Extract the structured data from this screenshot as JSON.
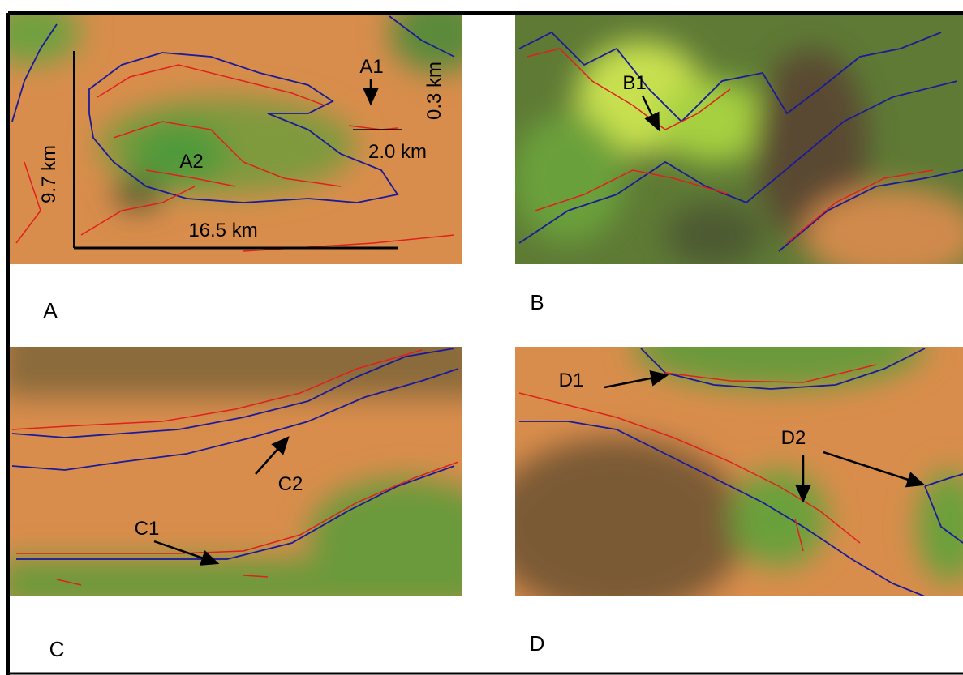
{
  "panels": [
    {
      "label": "A",
      "annotations": [
        "A1",
        "A2"
      ],
      "scale": {
        "height": "9.7 km",
        "width": "16.5 km",
        "inset_width": "2.0 km",
        "inset_height": "0.3 km"
      }
    },
    {
      "label": "B",
      "annotations": [
        "B1"
      ]
    },
    {
      "label": "C",
      "annotations": [
        "C1",
        "C2"
      ]
    },
    {
      "label": "D",
      "annotations": [
        "D1",
        "D2"
      ]
    }
  ]
}
